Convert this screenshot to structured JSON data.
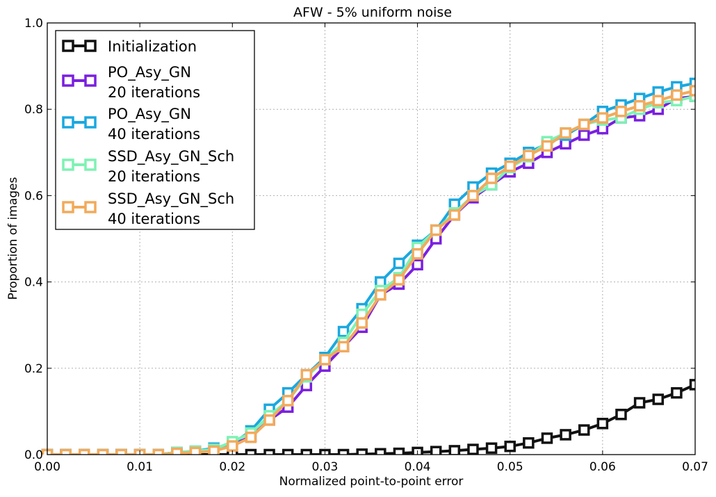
{
  "chart_data": {
    "type": "line",
    "title": "AFW - 5% uniform noise",
    "xlabel": "Normalized point-to-point error",
    "ylabel": "Proportion of images",
    "xlim": [
      0,
      0.07
    ],
    "ylim": [
      0,
      1.0
    ],
    "grid": true,
    "legend_position": "top-left",
    "x_ticks": [
      "0.00",
      "0.01",
      "0.02",
      "0.03",
      "0.04",
      "0.05",
      "0.06",
      "0.07"
    ],
    "y_ticks": [
      "0.0",
      "0.2",
      "0.4",
      "0.6",
      "0.8",
      "1.0"
    ],
    "x": [
      0.0,
      0.002,
      0.004,
      0.006,
      0.008,
      0.01,
      0.012,
      0.014,
      0.016,
      0.018,
      0.02,
      0.022,
      0.024,
      0.026,
      0.028,
      0.03,
      0.032,
      0.034,
      0.036,
      0.038,
      0.04,
      0.042,
      0.044,
      0.046,
      0.048,
      0.05,
      0.052,
      0.054,
      0.056,
      0.058,
      0.06,
      0.062,
      0.064,
      0.066,
      0.068,
      0.07
    ],
    "series": [
      {
        "name": "Initialization",
        "color": "#111111",
        "values": [
          0,
          0,
          0,
          0,
          0,
          0,
          0,
          0,
          0,
          0,
          0,
          0,
          0,
          0,
          0,
          0,
          0,
          0.001,
          0.002,
          0.003,
          0.005,
          0.007,
          0.009,
          0.012,
          0.015,
          0.019,
          0.027,
          0.038,
          0.046,
          0.057,
          0.072,
          0.093,
          0.12,
          0.128,
          0.143,
          0.162
        ]
      },
      {
        "name": "PO_Asy_GN\n20 iterations",
        "color": "#7a1fe0",
        "values": [
          0,
          0,
          0,
          0,
          0,
          0,
          0,
          0.005,
          0.007,
          0.01,
          0.022,
          0.042,
          0.08,
          0.11,
          0.16,
          0.205,
          0.25,
          0.295,
          0.37,
          0.395,
          0.44,
          0.5,
          0.555,
          0.595,
          0.625,
          0.655,
          0.675,
          0.7,
          0.72,
          0.74,
          0.755,
          0.78,
          0.785,
          0.8,
          0.825,
          0.83
        ]
      },
      {
        "name": "PO_Asy_GN\n40 iterations",
        "color": "#1aa8e0",
        "values": [
          0,
          0,
          0,
          0,
          0,
          0,
          0,
          0.005,
          0.008,
          0.015,
          0.025,
          0.055,
          0.105,
          0.143,
          0.185,
          0.225,
          0.285,
          0.338,
          0.4,
          0.443,
          0.485,
          0.52,
          0.58,
          0.62,
          0.652,
          0.675,
          0.7,
          0.72,
          0.74,
          0.765,
          0.795,
          0.81,
          0.825,
          0.84,
          0.852,
          0.86
        ]
      },
      {
        "name": "SSD_Asy_GN_Sch\n20 iterations",
        "color": "#7ef2b4",
        "values": [
          0,
          0,
          0,
          0,
          0,
          0,
          0,
          0.005,
          0.008,
          0.012,
          0.03,
          0.05,
          0.09,
          0.125,
          0.18,
          0.22,
          0.26,
          0.325,
          0.38,
          0.41,
          0.48,
          0.52,
          0.56,
          0.6,
          0.625,
          0.665,
          0.69,
          0.725,
          0.745,
          0.765,
          0.775,
          0.78,
          0.8,
          0.815,
          0.82,
          0.83
        ]
      },
      {
        "name": "SSD_Asy_GN_Sch\n40 iterations",
        "color": "#f2aa5c",
        "values": [
          0,
          0,
          0,
          0,
          0,
          0,
          0,
          0.003,
          0.005,
          0.008,
          0.02,
          0.04,
          0.08,
          0.125,
          0.185,
          0.22,
          0.25,
          0.305,
          0.37,
          0.405,
          0.465,
          0.52,
          0.555,
          0.6,
          0.64,
          0.668,
          0.693,
          0.715,
          0.745,
          0.765,
          0.78,
          0.795,
          0.808,
          0.82,
          0.833,
          0.843
        ]
      }
    ]
  }
}
